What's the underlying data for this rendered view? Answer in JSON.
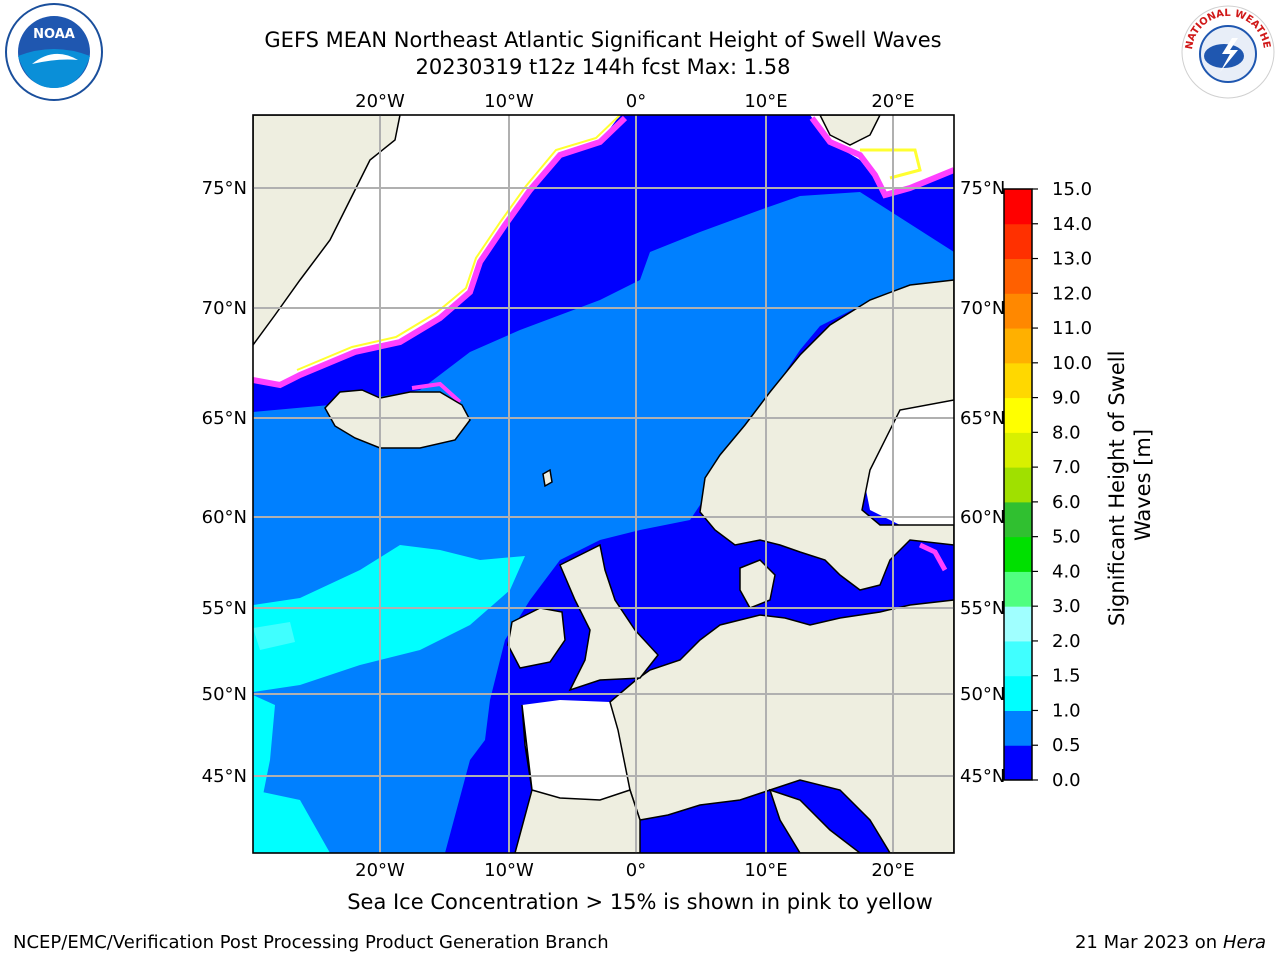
{
  "header": {
    "title_line1": "GEFS MEAN Northeast Atlantic Significant Height of Swell Waves",
    "title_line2": "20230319 t12z 144h fcst   Max: 1.58"
  },
  "logos": {
    "left": "NOAA",
    "right": "NATIONAL WEATHER SERVICE"
  },
  "map": {
    "lon_labels": [
      "20°W",
      "10°W",
      "0°",
      "10°E",
      "20°E"
    ],
    "lat_labels": [
      "75°N",
      "70°N",
      "65°N",
      "60°N",
      "55°N",
      "50°N",
      "45°N"
    ],
    "colors": {
      "land": "#eeeee0",
      "coast": "#000000",
      "grid": "#b0b0b0",
      "no_data": "#ffffff"
    }
  },
  "colorbar": {
    "label": "Significant Height of Swell Waves [m]",
    "ticks": [
      "0.0",
      "0.5",
      "1.0",
      "1.5",
      "2.0",
      "3.0",
      "4.0",
      "5.0",
      "6.0",
      "7.0",
      "8.0",
      "9.0",
      "10.0",
      "11.0",
      "12.0",
      "13.0",
      "14.0",
      "15.0"
    ],
    "colors": [
      "#0000ff",
      "#0080ff",
      "#00ffff",
      "#40ffff",
      "#a0ffff",
      "#50ff80",
      "#00e000",
      "#30c030",
      "#a0e000",
      "#d8f000",
      "#ffff00",
      "#ffd800",
      "#ffb000",
      "#ff8800",
      "#ff6000",
      "#ff3000",
      "#ff0000"
    ]
  },
  "ice_colors": [
    "#ff40ff",
    "#ffa0ff",
    "#ffff30"
  ],
  "footer": {
    "note": "Sea Ice Concentration > 15% is shown in pink to yellow",
    "credit": "NCEP/EMC/Verification Post Processing Product Generation Branch",
    "date": "21 Mar 2023 on",
    "host": "Hera"
  }
}
